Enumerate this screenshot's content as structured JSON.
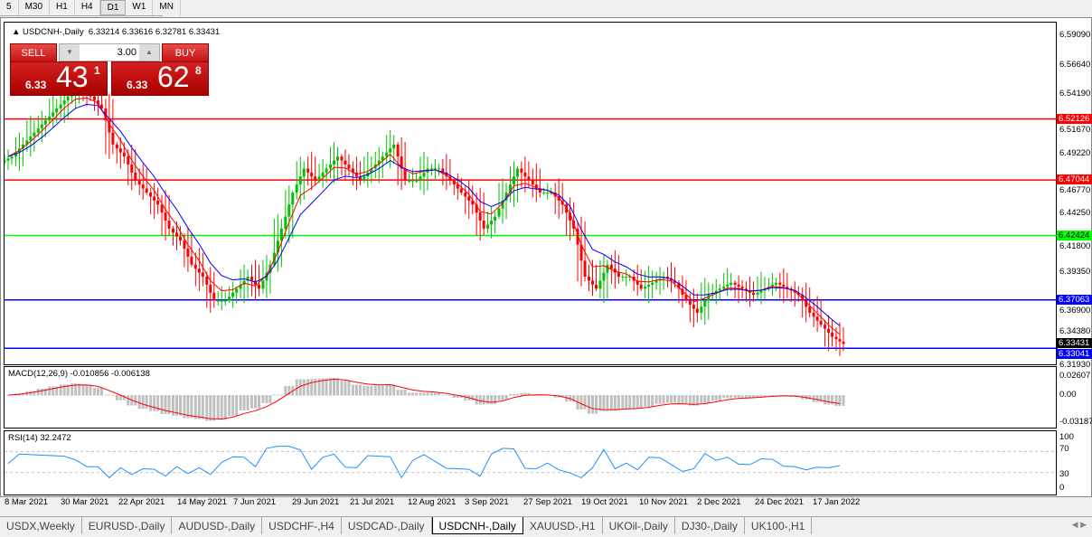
{
  "timeframes": [
    "5",
    "M30",
    "H1",
    "H4",
    "D1",
    "W1",
    "MN"
  ],
  "active_timeframe": "D1",
  "symbol_line": {
    "symbol": "USDCNH-,Daily",
    "ohlc": "6.33214 6.33616 6.32781 6.33431"
  },
  "trade_panel": {
    "sell_label": "SELL",
    "buy_label": "BUY",
    "lots": "3.00",
    "sell_price": {
      "small": "6.33",
      "big": "43",
      "tiny": "1"
    },
    "buy_price": {
      "small": "6.33",
      "big": "62",
      "tiny": "8"
    }
  },
  "price_axis": [
    "6.59090",
    "6.56640",
    "6.54190",
    "6.51670",
    "6.49220",
    "6.46770",
    "6.44250",
    "6.41800",
    "6.39350",
    "6.36900",
    "6.34380",
    "6.31930"
  ],
  "levels": [
    {
      "price": "6.52126",
      "color": "#ff0000"
    },
    {
      "price": "6.47044",
      "color": "#ff0000"
    },
    {
      "price": "6.42424",
      "color": "#00ff00"
    },
    {
      "price": "6.37063",
      "color": "#0000ff"
    },
    {
      "price": "6.33041",
      "color": "#0000ff"
    }
  ],
  "current_price": "6.33431",
  "macd": {
    "label": "MACD(12,26,9) -0.010856 -0.006138",
    "axis": [
      "0.02607",
      "0.00",
      "-0.031872"
    ]
  },
  "rsi": {
    "label": "RSI(14) 32.2472",
    "axis": [
      "100",
      "70",
      "30",
      "0"
    ]
  },
  "dates": [
    "8 Mar 2021",
    "30 Mar 2021",
    "22 Apr 2021",
    "14 May 2021",
    "7 Jun 2021",
    "29 Jun 2021",
    "21 Jul 2021",
    "12 Aug 2021",
    "3 Sep 2021",
    "27 Sep 2021",
    "19 Oct 2021",
    "10 Nov 2021",
    "2 Dec 2021",
    "24 Dec 2021",
    "17 Jan 2022"
  ],
  "tabs": [
    "USDX,Weekly",
    "EURUSD-,Daily",
    "AUDUSD-,Daily",
    "USDCHF-,H4",
    "USDCAD-,Daily",
    "USDCNH-,Daily",
    "XAUUSD-,H1",
    "UKOil-,Daily",
    "DJ30-,Daily",
    "UK100-,H1"
  ],
  "active_tab": "USDCNH-,Daily",
  "colors": {
    "bull": "#00c000",
    "bear": "#ff0000",
    "ma_fast": "#ff0000",
    "ma_slow": "#0000ff",
    "macd_hist": "#c0c0c0",
    "rsi": "#1e90ff"
  },
  "chart_data": {
    "type": "candlestick",
    "approx_closes": [
      6.49,
      6.5,
      6.51,
      6.52,
      6.53,
      6.54,
      6.545,
      6.54,
      6.53,
      6.5,
      6.49,
      6.47,
      6.46,
      6.45,
      6.43,
      6.42,
      6.4,
      6.39,
      6.37,
      6.37,
      6.38,
      6.39,
      6.38,
      6.4,
      6.43,
      6.46,
      6.48,
      6.47,
      6.48,
      6.49,
      6.48,
      6.47,
      6.48,
      6.49,
      6.5,
      6.47,
      6.47,
      6.48,
      6.48,
      6.47,
      6.46,
      6.45,
      6.43,
      6.44,
      6.46,
      6.48,
      6.47,
      6.46,
      6.46,
      6.45,
      6.43,
      6.39,
      6.38,
      6.4,
      6.39,
      6.39,
      6.38,
      6.385,
      6.39,
      6.385,
      6.37,
      6.36,
      6.375,
      6.38,
      6.385,
      6.38,
      6.375,
      6.38,
      6.385,
      6.38,
      6.375,
      6.36,
      6.35,
      6.34,
      6.334
    ],
    "ylim": [
      6.3193,
      6.5909
    ]
  }
}
